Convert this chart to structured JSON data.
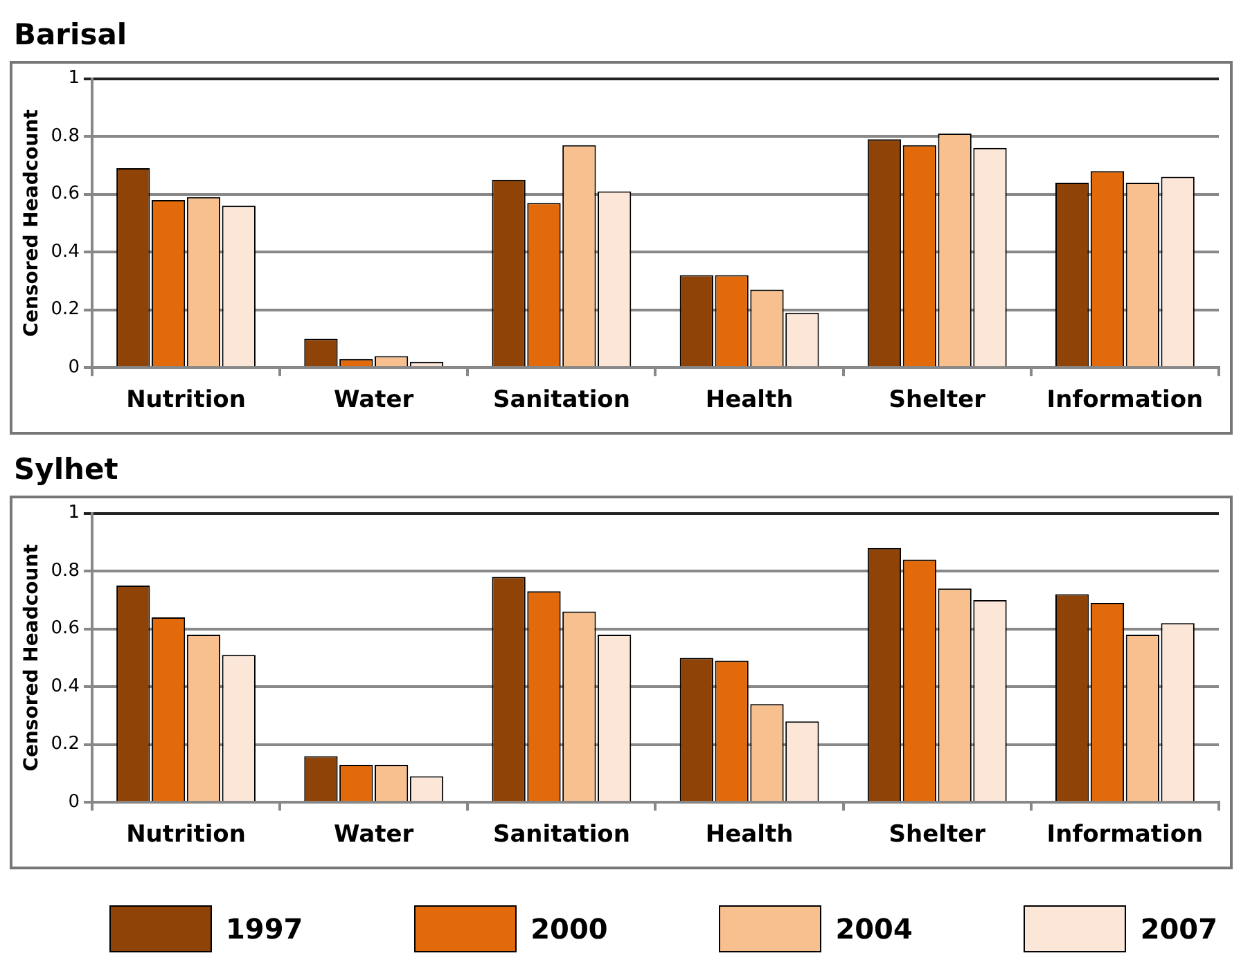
{
  "chart_data": [
    {
      "type": "bar",
      "title": "Barisal",
      "ylabel": "Censored Headcount",
      "categories": [
        "Nutrition",
        "Water",
        "Sanitation",
        "Health",
        "Shelter",
        "Information"
      ],
      "ylim": [
        0,
        1
      ],
      "yticks": [
        0,
        0.2,
        0.4,
        0.6,
        0.8,
        1
      ],
      "grid": "y",
      "legend": false,
      "series": [
        {
          "color": "#8f4306",
          "values": [
            0.69,
            0.1,
            0.65,
            0.32,
            0.79,
            0.64
          ]
        },
        {
          "color": "#e26a0a",
          "values": [
            0.58,
            0.03,
            0.57,
            0.32,
            0.77,
            0.68
          ]
        },
        {
          "color": "#f8c08f",
          "values": [
            0.59,
            0.04,
            0.77,
            0.27,
            0.81,
            0.64
          ]
        },
        {
          "color": "#fbe6d7",
          "values": [
            0.56,
            0.02,
            0.61,
            0.19,
            0.76,
            0.66
          ]
        }
      ]
    },
    {
      "type": "bar",
      "title": "Sylhet",
      "ylabel": "Censored Headcount",
      "categories": [
        "Nutrition",
        "Water",
        "Sanitation",
        "Health",
        "Shelter",
        "Information"
      ],
      "ylim": [
        0,
        1
      ],
      "yticks": [
        0,
        0.2,
        0.4,
        0.6,
        0.8,
        1
      ],
      "grid": "y",
      "legend": "bottom",
      "series": [
        {
          "name": "1997",
          "color": "#8f4306",
          "values": [
            0.75,
            0.16,
            0.78,
            0.5,
            0.88,
            0.72
          ]
        },
        {
          "name": "2000",
          "color": "#e26a0a",
          "values": [
            0.64,
            0.13,
            0.73,
            0.49,
            0.84,
            0.69
          ]
        },
        {
          "name": "2004",
          "color": "#f8c08f",
          "values": [
            0.58,
            0.13,
            0.66,
            0.34,
            0.74,
            0.58
          ]
        },
        {
          "name": "2007",
          "color": "#fbe6d7",
          "values": [
            0.51,
            0.09,
            0.58,
            0.28,
            0.7,
            0.62
          ]
        }
      ]
    }
  ]
}
